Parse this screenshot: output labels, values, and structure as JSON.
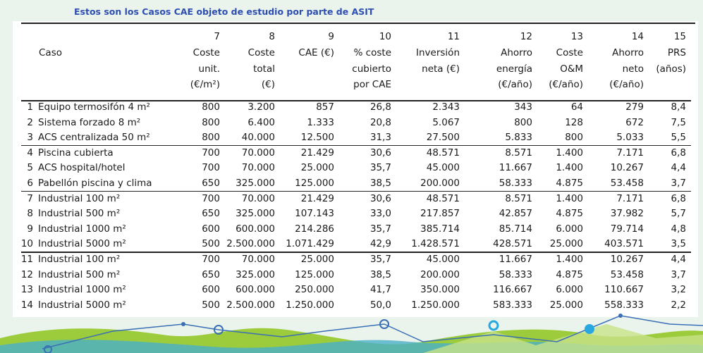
{
  "caption": "Estos son los Casos CAE objeto de estudio por parte de ASIT",
  "table": {
    "header": [
      [
        "Caso"
      ],
      [
        "7",
        "Coste",
        "unit.",
        "(€/m²)"
      ],
      [
        "8",
        "Coste",
        "total",
        "(€)"
      ],
      [
        "9",
        "CAE (€)"
      ],
      [
        "10",
        "% coste",
        "cubierto",
        "por CAE"
      ],
      [
        "11",
        "Inversión",
        "neta (€)"
      ],
      [
        "12",
        "Ahorro",
        "energía",
        "(€/año)"
      ],
      [
        "13",
        "Coste",
        "O&M",
        "(€/año)"
      ],
      [
        "14",
        "Ahorro",
        "neto",
        "(€/año)"
      ],
      [
        "15",
        "PRS",
        "(años)"
      ]
    ],
    "rows": [
      [
        "1",
        "Equipo termosifón 4 m²",
        "800",
        "3.200",
        "857",
        "26,8",
        "2.343",
        "343",
        "64",
        "279",
        "8,4"
      ],
      [
        "2",
        "Sistema forzado 8 m²",
        "800",
        "6.400",
        "1.333",
        "20,8",
        "5.067",
        "800",
        "128",
        "672",
        "7,5"
      ],
      [
        "3",
        "ACS centralizada 50 m²",
        "800",
        "40.000",
        "12.500",
        "31,3",
        "27.500",
        "5.833",
        "800",
        "5.033",
        "5,5"
      ],
      [
        "4",
        "Piscina cubierta",
        "700",
        "70.000",
        "21.429",
        "30,6",
        "48.571",
        "8.571",
        "1.400",
        "7.171",
        "6,8"
      ],
      [
        "5",
        "ACS hospital/hotel",
        "700",
        "70.000",
        "25.000",
        "35,7",
        "45.000",
        "11.667",
        "1.400",
        "10.267",
        "4,4"
      ],
      [
        "6",
        "Pabellón piscina y clima",
        "650",
        "325.000",
        "125.000",
        "38,5",
        "200.000",
        "58.333",
        "4.875",
        "53.458",
        "3,7"
      ],
      [
        "7",
        "Industrial 100 m²",
        "700",
        "70.000",
        "21.429",
        "30,6",
        "48.571",
        "8.571",
        "1.400",
        "7.171",
        "6,8"
      ],
      [
        "8",
        "Industrial 500 m²",
        "650",
        "325.000",
        "107.143",
        "33,0",
        "217.857",
        "42.857",
        "4.875",
        "37.982",
        "5,7"
      ],
      [
        "9",
        "Industrial 1000 m²",
        "600",
        "600.000",
        "214.286",
        "35,7",
        "385.714",
        "85.714",
        "6.000",
        "79.714",
        "4,8"
      ],
      [
        "10",
        "Industrial 5000 m²",
        "500",
        "2.500.000",
        "1.071.429",
        "42,9",
        "1.428.571",
        "428.571",
        "25.000",
        "403.571",
        "3,5"
      ],
      [
        "11",
        "Industrial 100 m²",
        "700",
        "70.000",
        "25.000",
        "35,7",
        "45.000",
        "11.667",
        "1.400",
        "10.267",
        "4,4"
      ],
      [
        "12",
        "Industrial 500 m²",
        "650",
        "325.000",
        "125.000",
        "38,5",
        "200.000",
        "58.333",
        "4.875",
        "53.458",
        "3,7"
      ],
      [
        "13",
        "Industrial 1000 m²",
        "600",
        "600.000",
        "250.000",
        "41,7",
        "350.000",
        "116.667",
        "6.000",
        "110.667",
        "3,2"
      ],
      [
        "14",
        "Industrial 5000 m²",
        "500",
        "2.500.000",
        "1.250.000",
        "50,0",
        "1.250.000",
        "583.333",
        "25.000",
        "558.333",
        "2,2"
      ]
    ]
  }
}
